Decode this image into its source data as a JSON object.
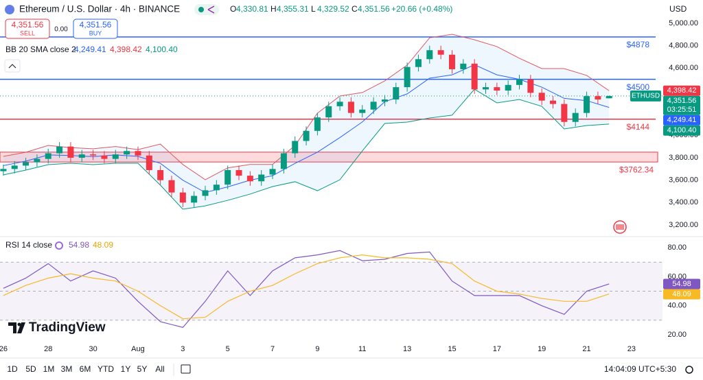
{
  "header": {
    "title": "Ethereum / U.S. Dollar · 4h · BINANCE",
    "ohlc": [
      {
        "label": "O",
        "value": "4,330.81"
      },
      {
        "label": "H",
        "value": "4,355.31"
      },
      {
        "label": "L",
        "value": "4,329.52"
      },
      {
        "label": "C",
        "value": "4,351.56"
      }
    ],
    "change": "+20.66 (+0.48%)",
    "currency": "USD"
  },
  "order": {
    "sell_price": "4,351.56",
    "sell": "SELL",
    "spread": "0.00",
    "buy_price": "4,351.56",
    "buy": "BUY"
  },
  "indicators": {
    "bb": {
      "name": "BB 20 SMA close 2",
      "values": [
        "4,249.41",
        "4,398.42",
        "4,100.40"
      ]
    },
    "rsi": {
      "name": "RSI 14 close",
      "values": [
        "54.98",
        "48.09"
      ]
    }
  },
  "chart_data": [
    {
      "type": "candlestick",
      "up_color": "#089981",
      "down_color": "#f23645",
      "x": [
        0,
        0.5,
        1,
        1.5,
        2,
        2.5,
        3,
        3.5,
        4,
        4.5,
        5,
        5.5,
        6,
        6.5,
        7,
        7.5,
        8,
        8.5,
        9,
        9.5,
        10,
        10.5,
        11,
        11.5,
        12,
        12.5,
        13,
        13.5,
        14,
        14.5,
        15,
        15.5,
        16,
        16.5,
        17,
        17.5,
        18,
        18.5,
        19,
        19.5,
        20,
        20.5,
        21,
        21.5,
        22,
        22.5,
        23,
        23.5,
        24,
        24.5,
        25,
        25.5,
        26,
        26.5,
        27
      ],
      "open": [
        3680,
        3700,
        3730,
        3760,
        3790,
        3840,
        3900,
        3800,
        3830,
        3820,
        3790,
        3830,
        3860,
        3820,
        3690,
        3600,
        3490,
        3400,
        3460,
        3510,
        3560,
        3690,
        3640,
        3590,
        3650,
        3700,
        3840,
        3950,
        4040,
        4160,
        4260,
        4300,
        4200,
        4230,
        4300,
        4320,
        4430,
        4610,
        4680,
        4760,
        4720,
        4590,
        4640,
        4410,
        4430,
        4400,
        4450,
        4500,
        4380,
        4310,
        4280,
        4120,
        4200,
        4350,
        4330.81
      ],
      "high": [
        3740,
        3770,
        3800,
        3830,
        3880,
        3940,
        3940,
        3870,
        3870,
        3860,
        3870,
        3900,
        3900,
        3860,
        3730,
        3640,
        3530,
        3500,
        3550,
        3600,
        3730,
        3730,
        3680,
        3690,
        3740,
        3880,
        3990,
        4080,
        4200,
        4300,
        4340,
        4340,
        4270,
        4340,
        4360,
        4470,
        4650,
        4720,
        4800,
        4800,
        4760,
        4680,
        4680,
        4470,
        4470,
        4490,
        4540,
        4540,
        4420,
        4350,
        4320,
        4240,
        4390,
        4390,
        4355.31
      ],
      "low": [
        3640,
        3660,
        3690,
        3720,
        3750,
        3800,
        3760,
        3760,
        3780,
        3750,
        3750,
        3790,
        3780,
        3650,
        3560,
        3450,
        3360,
        3360,
        3420,
        3470,
        3520,
        3600,
        3550,
        3550,
        3610,
        3660,
        3800,
        3910,
        4000,
        4120,
        4220,
        4160,
        4160,
        4190,
        4260,
        4280,
        4390,
        4570,
        4640,
        4680,
        4550,
        4550,
        4370,
        4370,
        4360,
        4360,
        4410,
        4340,
        4270,
        4240,
        4080,
        4080,
        4160,
        4280,
        4329.52
      ],
      "close": [
        3700,
        3730,
        3760,
        3790,
        3840,
        3900,
        3800,
        3830,
        3820,
        3790,
        3830,
        3860,
        3820,
        3690,
        3600,
        3490,
        3400,
        3460,
        3510,
        3560,
        3690,
        3640,
        3590,
        3650,
        3700,
        3840,
        3950,
        4040,
        4160,
        4260,
        4300,
        4200,
        4230,
        4300,
        4320,
        4430,
        4610,
        4680,
        4760,
        4720,
        4590,
        4640,
        4410,
        4430,
        4400,
        4450,
        4500,
        4380,
        4310,
        4280,
        4120,
        4200,
        4350,
        4320,
        4351.56
      ],
      "bands": {
        "x": [
          0,
          1,
          2,
          3,
          4,
          5,
          6,
          7,
          8,
          9,
          10,
          11,
          12,
          13,
          14,
          15,
          16,
          17,
          18,
          19,
          20,
          21,
          22,
          23,
          24,
          25,
          26,
          27
        ],
        "upper": [
          3812,
          3849,
          3910,
          3890,
          3880,
          3900,
          3873,
          3922,
          3740,
          3604,
          3710,
          3740,
          3740,
          3910,
          4198,
          4351,
          4382,
          4486,
          4627,
          4871,
          4902,
          4853,
          4792,
          4688,
          4596,
          4596,
          4535,
          4398.42
        ],
        "middle": [
          3730,
          3770,
          3825,
          3820,
          3810,
          3825,
          3812,
          3750,
          3600,
          3490,
          3540,
          3600,
          3640,
          3750,
          3850,
          3980,
          4120,
          4300,
          4370,
          4510,
          4540,
          4630,
          4540,
          4500,
          4430,
          4330,
          4310,
          4249.41
        ],
        "lower": [
          3647,
          3690,
          3739,
          3751,
          3739,
          3751,
          3751,
          3555,
          3341,
          3371,
          3420,
          3476,
          3543,
          3586,
          3506,
          3604,
          3861,
          4106,
          4118,
          4155,
          4180,
          4412,
          4290,
          4320,
          4259,
          4057,
          4088,
          4100.4
        ],
        "colors": {
          "upper": "#e0575f",
          "middle": "#2962ff",
          "lower": "#089981",
          "fill": "#2196f3"
        }
      },
      "levels": [
        {
          "value": 4878,
          "label": "$4878",
          "color": "#2962ff"
        },
        {
          "value": 4500,
          "label": "$4500",
          "color": "#2962ff"
        },
        {
          "value": 4144,
          "label": "$4144",
          "color": "#f23645"
        }
      ],
      "zone": {
        "low": 3762.34,
        "high": 3850,
        "label": "$3762.34",
        "color": "#f23645"
      },
      "xlim": [
        -0.15,
        29.38
      ],
      "ylim": [
        3096,
        5208
      ],
      "yticks": [
        {
          "value": 5000,
          "label": "5,000.00"
        },
        {
          "value": 4800,
          "label": "4,800.00"
        },
        {
          "value": 4600,
          "label": "4,600.00"
        },
        {
          "value": 4400,
          "label": "4,400.00"
        },
        {
          "value": 4200,
          "label": "4,200.00"
        },
        {
          "value": 4000,
          "label": "4,000.00"
        },
        {
          "value": 3800,
          "label": "3,800.00"
        },
        {
          "value": 3600,
          "label": "3,600.00"
        },
        {
          "value": 3400,
          "label": "3,400.00"
        },
        {
          "value": 3200,
          "label": "3,200.00"
        }
      ],
      "price_labels": [
        {
          "value": 4398.42,
          "label": "4,398.42",
          "color": "#f23645"
        },
        {
          "value": 4351.56,
          "label": "4,351.56",
          "color": "#089981",
          "symbol": "ETHUSD",
          "countdown": "03:25:51"
        },
        {
          "value": 4249.41,
          "label": "4,249.41",
          "color": "#2962ff"
        },
        {
          "value": 4100.4,
          "label": "4,100.40",
          "color": "#089981"
        }
      ]
    },
    {
      "type": "line",
      "x": [
        0,
        1,
        2,
        3,
        4,
        5,
        6,
        7,
        8,
        9,
        10,
        11,
        12,
        13,
        14,
        15,
        16,
        17,
        18,
        19,
        20,
        21,
        22,
        23,
        24,
        25,
        26,
        27
      ],
      "series": [
        {
          "color": "#7e57c2",
          "values": [
            52,
            59,
            69,
            57,
            64,
            59,
            43,
            29,
            25,
            43,
            64,
            47,
            64,
            73,
            75,
            78,
            71,
            72,
            76,
            77,
            57,
            47,
            47,
            47,
            40,
            34,
            50,
            54.98
          ]
        },
        {
          "color": "#f7b924",
          "values": [
            47,
            54,
            59,
            62,
            59,
            57,
            50,
            40,
            31,
            32,
            43,
            50,
            54,
            62,
            69,
            73,
            75,
            73,
            73,
            72,
            69,
            57,
            50,
            48,
            45,
            43,
            43,
            48.09
          ]
        }
      ],
      "levels": [
        70,
        50,
        30
      ],
      "xlim": [
        -0.15,
        29.38
      ],
      "ylim": [
        14.3,
        87.6
      ],
      "yticks": [
        {
          "value": 80,
          "label": "80.00"
        },
        {
          "value": 60,
          "label": "60.00"
        },
        {
          "value": 40,
          "label": "40.00"
        },
        {
          "value": 20,
          "label": "20.00"
        }
      ],
      "xticks": [
        {
          "value": 0,
          "label": "26"
        },
        {
          "value": 2,
          "label": "28"
        },
        {
          "value": 4,
          "label": "30"
        },
        {
          "value": 6,
          "label": "Aug"
        },
        {
          "value": 8,
          "label": "3"
        },
        {
          "value": 10,
          "label": "5"
        },
        {
          "value": 12,
          "label": "7"
        },
        {
          "value": 14,
          "label": "9"
        },
        {
          "value": 16,
          "label": "11"
        },
        {
          "value": 18,
          "label": "13"
        },
        {
          "value": 20,
          "label": "15"
        },
        {
          "value": 22,
          "label": "17"
        },
        {
          "value": 24,
          "label": "19"
        },
        {
          "value": 26,
          "label": "21"
        },
        {
          "value": 28,
          "label": "23"
        }
      ],
      "price_labels": [
        {
          "value": 54.98,
          "label": "54.98",
          "color": "#7e57c2"
        },
        {
          "value": 48.09,
          "label": "48.09",
          "color": "#f7b924"
        }
      ]
    }
  ],
  "toolbar": {
    "ranges": [
      "1D",
      "5D",
      "1M",
      "3M",
      "6M",
      "YTD",
      "1Y",
      "5Y",
      "All"
    ],
    "time": "14:04:09 UTC+5:30"
  },
  "logo": "TradingView"
}
